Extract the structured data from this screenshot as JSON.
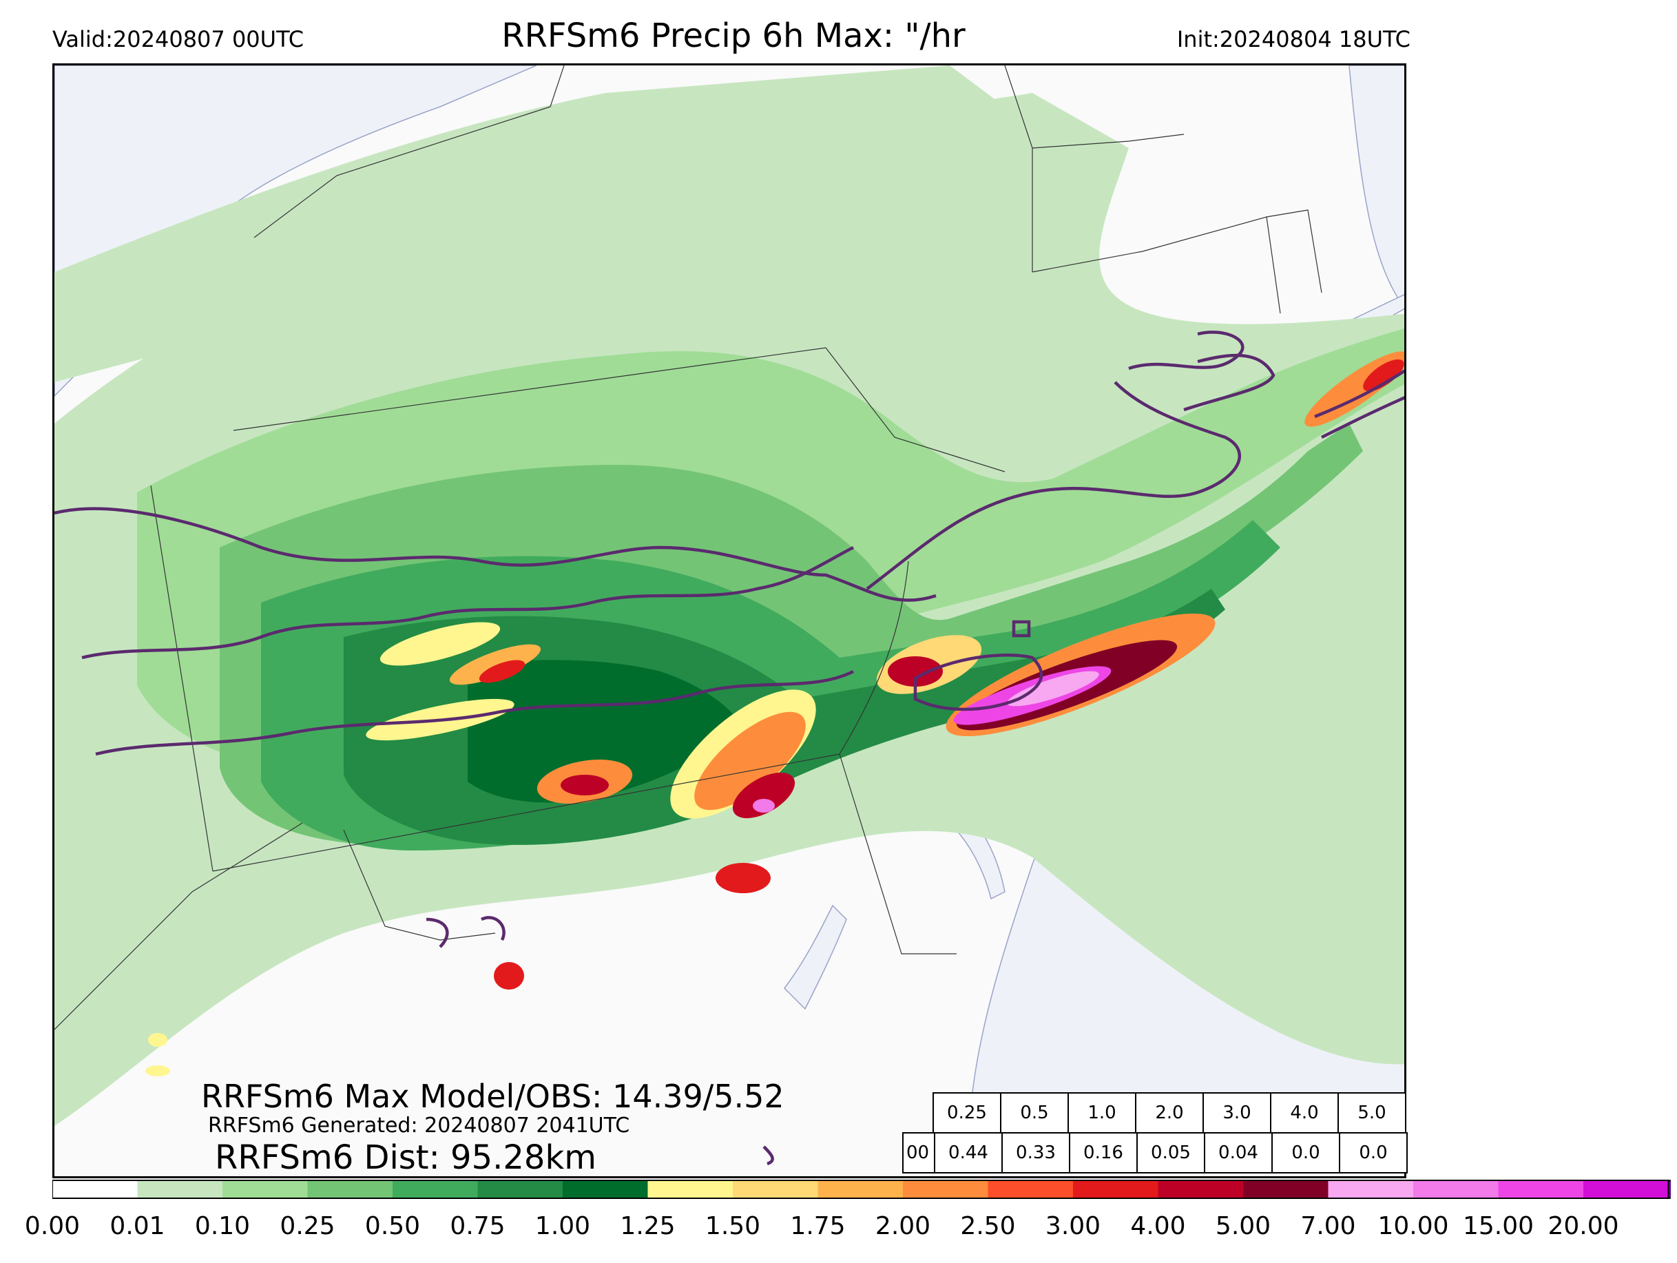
{
  "header": {
    "valid": "Valid:20240807 00UTC",
    "title": "RRFSm6 Precip 6h Max: \"/hr",
    "init": "Init:20240804 18UTC"
  },
  "annotations": {
    "max_model_obs": "RRFSm6 Max Model/OBS: 14.39/5.52",
    "generated": "RRFSm6 Generated: 20240807 2041UTC",
    "distance": "RRFSm6 Dist: 95.28km"
  },
  "threshold_table": {
    "thresholds": [
      "0.25",
      "0.5",
      "1.0",
      "2.0",
      "3.0",
      "4.0",
      "5.0"
    ],
    "row_label": "00",
    "values": [
      "0.44",
      "0.33",
      "0.16",
      "0.05",
      "0.04",
      "0.0",
      "0.0"
    ]
  },
  "colorbar": {
    "ticks": [
      "0.00",
      "0.01",
      "0.10",
      "0.25",
      "0.50",
      "0.75",
      "1.00",
      "1.25",
      "1.50",
      "1.75",
      "2.00",
      "2.50",
      "3.00",
      "4.00",
      "5.00",
      "7.00",
      "10.00",
      "15.00",
      "20.00"
    ],
    "colors": [
      "#ffffff",
      "#c7e6c0",
      "#a0dc96",
      "#74c476",
      "#41ab5d",
      "#238b45",
      "#006d2c",
      "#fff68f",
      "#fed976",
      "#feb24c",
      "#fd8d3c",
      "#fc4e2a",
      "#e31a1c",
      "#bd0026",
      "#800026",
      "#f7a8f0",
      "#f27ae9",
      "#ee46e6",
      "#d20fd6",
      "#9c00c8"
    ],
    "extend_color": "#6a00a8"
  },
  "map": {
    "land_color": "#fafafa",
    "water_color": "#eef2f8",
    "obs_contour_color": "#5b2a6e",
    "boundary_color": "#333333"
  }
}
